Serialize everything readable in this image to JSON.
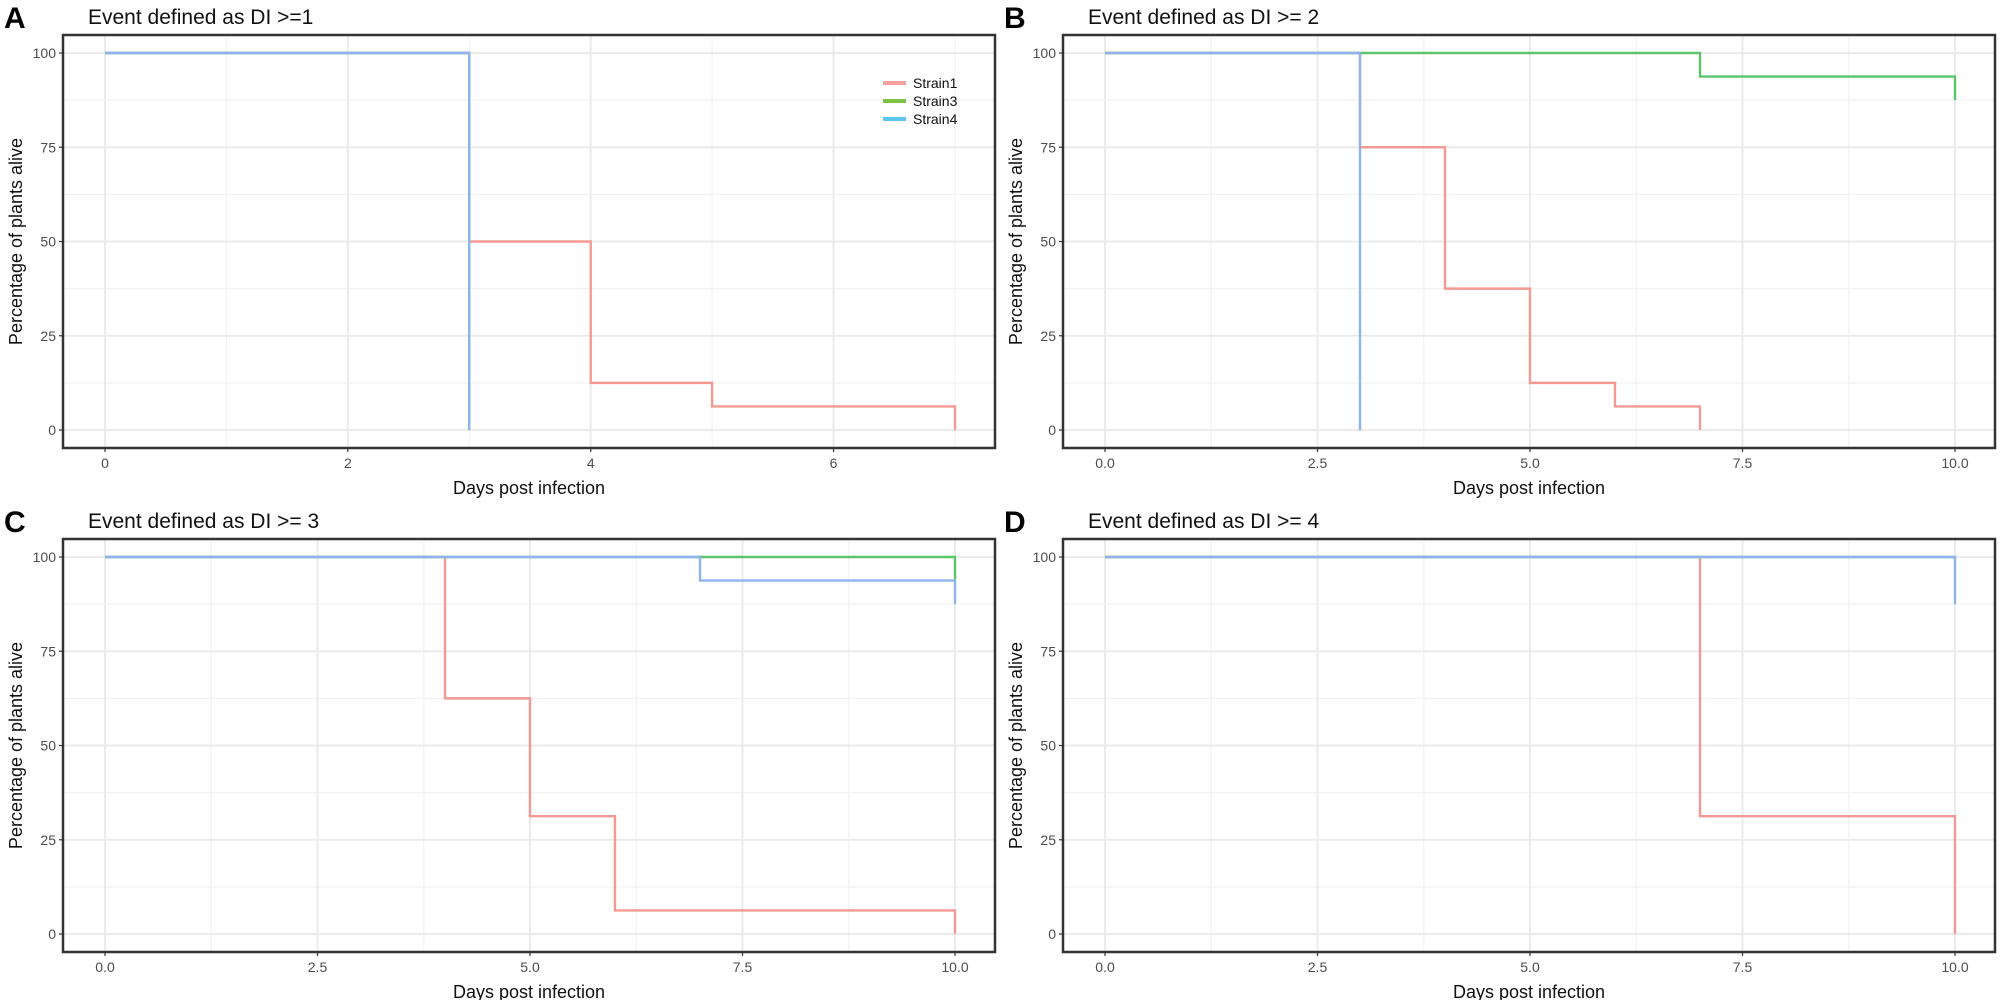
{
  "chart_data": [
    {
      "type": "line",
      "panel_label": "A",
      "title": "Event defined as DI >=1",
      "xlabel": "Days post infection",
      "ylabel": "Percentage of plants alive",
      "xlim": [
        0,
        7
      ],
      "ylim": [
        0,
        100
      ],
      "xticks": [
        0,
        2,
        4,
        6
      ],
      "xtick_labels": [
        "0",
        "2",
        "4",
        "6"
      ],
      "yticks": [
        0,
        25,
        50,
        75,
        100
      ],
      "ytick_labels": [
        "0",
        "25",
        "50",
        "75",
        "100"
      ],
      "grid": true,
      "legend": {
        "placement": "top-right",
        "entries": [
          "Strain1",
          "Strain3",
          "Strain4"
        ]
      },
      "series": [
        {
          "name": "Strain1",
          "step": true,
          "x": [
            0,
            3,
            4,
            5,
            7
          ],
          "y": [
            100,
            50,
            12.5,
            6.25,
            0
          ]
        },
        {
          "name": "Strain3",
          "step": true,
          "x": [
            0,
            3
          ],
          "y": [
            100,
            0
          ]
        },
        {
          "name": "Strain4",
          "step": true,
          "x": [
            0,
            3
          ],
          "y": [
            100,
            0
          ]
        }
      ]
    },
    {
      "type": "line",
      "panel_label": "B",
      "title": "Event defined as DI >= 2",
      "xlabel": "Days post infection",
      "ylabel": "Percentage of plants alive",
      "xlim": [
        0,
        10
      ],
      "ylim": [
        0,
        100
      ],
      "xticks": [
        0,
        2.5,
        5,
        7.5,
        10
      ],
      "xtick_labels": [
        "0.0",
        "2.5",
        "5.0",
        "7.5",
        "10.0"
      ],
      "yticks": [
        0,
        25,
        50,
        75,
        100
      ],
      "ytick_labels": [
        "0",
        "25",
        "50",
        "75",
        "100"
      ],
      "grid": true,
      "series": [
        {
          "name": "Strain1",
          "step": true,
          "x": [
            0,
            3,
            4,
            5,
            6,
            7
          ],
          "y": [
            100,
            75,
            37.5,
            12.5,
            6.25,
            0
          ]
        },
        {
          "name": "Strain3",
          "step": true,
          "x": [
            0,
            7,
            10
          ],
          "y": [
            100,
            93.75,
            87.5
          ]
        },
        {
          "name": "Strain4",
          "step": true,
          "x": [
            0,
            3
          ],
          "y": [
            100,
            0
          ]
        }
      ]
    },
    {
      "type": "line",
      "panel_label": "C",
      "title": "Event defined as DI >= 3",
      "xlabel": "Days post infection",
      "ylabel": "Percentage of plants alive",
      "xlim": [
        0,
        10
      ],
      "ylim": [
        0,
        100
      ],
      "xticks": [
        0,
        2.5,
        5,
        7.5,
        10
      ],
      "xtick_labels": [
        "0.0",
        "2.5",
        "5.0",
        "7.5",
        "10.0"
      ],
      "yticks": [
        0,
        25,
        50,
        75,
        100
      ],
      "ytick_labels": [
        "0",
        "25",
        "50",
        "75",
        "100"
      ],
      "grid": true,
      "series": [
        {
          "name": "Strain1",
          "step": true,
          "x": [
            0,
            4,
            5,
            6,
            10
          ],
          "y": [
            100,
            62.5,
            31.25,
            6.25,
            0
          ]
        },
        {
          "name": "Strain3",
          "step": true,
          "x": [
            0,
            10
          ],
          "y": [
            100,
            93.75
          ]
        },
        {
          "name": "Strain4",
          "step": true,
          "x": [
            0,
            7,
            10
          ],
          "y": [
            100,
            93.75,
            87.5
          ]
        }
      ]
    },
    {
      "type": "line",
      "panel_label": "D",
      "title": "Event defined as DI >= 4",
      "xlabel": "Days post infection",
      "ylabel": "Percentage of plants alive",
      "xlim": [
        0,
        10
      ],
      "ylim": [
        0,
        100
      ],
      "xticks": [
        0,
        2.5,
        5,
        7.5,
        10
      ],
      "xtick_labels": [
        "0.0",
        "2.5",
        "5.0",
        "7.5",
        "10.0"
      ],
      "yticks": [
        0,
        25,
        50,
        75,
        100
      ],
      "ytick_labels": [
        "0",
        "25",
        "50",
        "75",
        "100"
      ],
      "grid": true,
      "series": [
        {
          "name": "Strain1",
          "step": true,
          "x": [
            0,
            7,
            10
          ],
          "y": [
            100,
            31.25,
            0
          ]
        },
        {
          "name": "Strain3",
          "step": true,
          "x": [
            0,
            10
          ],
          "y": [
            100,
            100
          ]
        },
        {
          "name": "Strain4",
          "step": true,
          "x": [
            0,
            10
          ],
          "y": [
            100,
            87.5
          ]
        }
      ]
    }
  ],
  "colors": {
    "Strain1": "#f59a93",
    "Strain3": "#5cc46a",
    "Strain4": "#8fb3ee",
    "legend_Strain1": "#f8a09a",
    "legend_Strain3": "#7cc142",
    "legend_Strain4": "#5bc6ee"
  }
}
